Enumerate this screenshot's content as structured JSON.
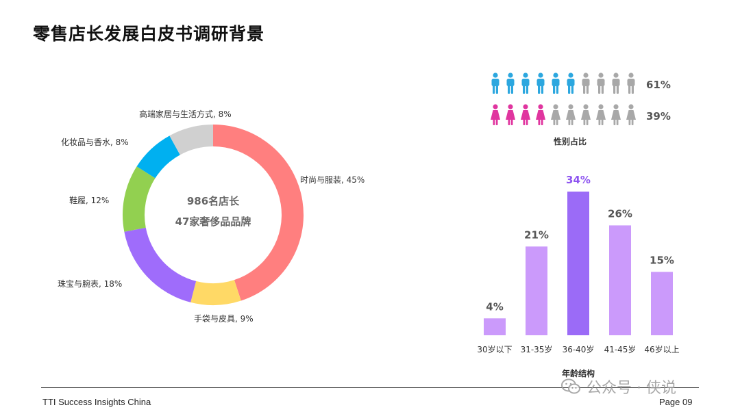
{
  "title": "零售店长发展白皮书调研背景",
  "colors": {
    "male": "#2CA7DF",
    "female": "#E0359F",
    "person_gray": "#A8A8A8",
    "bar": "#CB9AFB",
    "bar_highlight": "#9B6BF7",
    "highlight_text": "#8E55F0"
  },
  "chart_data": [
    {
      "type": "pie",
      "variant": "donut",
      "center_text": [
        "986名店长",
        "47家奢侈品品牌"
      ],
      "slices": [
        {
          "label": "时尚与服装, 45%",
          "value": 45,
          "color": "#FF7F7F"
        },
        {
          "label": "手袋与皮具, 9%",
          "value": 9,
          "color": "#FFD966"
        },
        {
          "label": "珠宝与腕表, 18%",
          "value": 18,
          "color": "#9F6CFB"
        },
        {
          "label": "鞋履, 12%",
          "value": 12,
          "color": "#92D050"
        },
        {
          "label": "化妆品与香水, 8%",
          "value": 8,
          "color": "#00B0F0"
        },
        {
          "label": "高端家居与生活方式, 8%",
          "value": 8,
          "color": "#D0D0D0"
        }
      ]
    },
    {
      "type": "icon-array",
      "caption": "性别占比",
      "series": [
        {
          "gender": "male",
          "icon": "male-person-icon",
          "value": 61,
          "label": "61%",
          "colored_count": 6,
          "total_icons": 10
        },
        {
          "gender": "female",
          "icon": "female-person-icon",
          "value": 39,
          "label": "39%",
          "colored_count": 4,
          "total_icons": 10
        }
      ]
    },
    {
      "type": "bar",
      "xlabel": "年龄结构",
      "categories": [
        "30岁以下",
        "31-35岁",
        "36-40岁",
        "41-45岁",
        "46岁以上"
      ],
      "values": [
        4,
        21,
        34,
        26,
        15
      ],
      "value_labels": [
        "4%",
        "21%",
        "34%",
        "26%",
        "15%"
      ],
      "ylim": [
        0,
        34
      ],
      "highlight_index": 2
    }
  ],
  "footer": {
    "left": "TTI Success Insights China",
    "right": "Page 09"
  },
  "watermark": {
    "text": "公众号 · 侠说",
    "icon": "wechat-icon"
  }
}
